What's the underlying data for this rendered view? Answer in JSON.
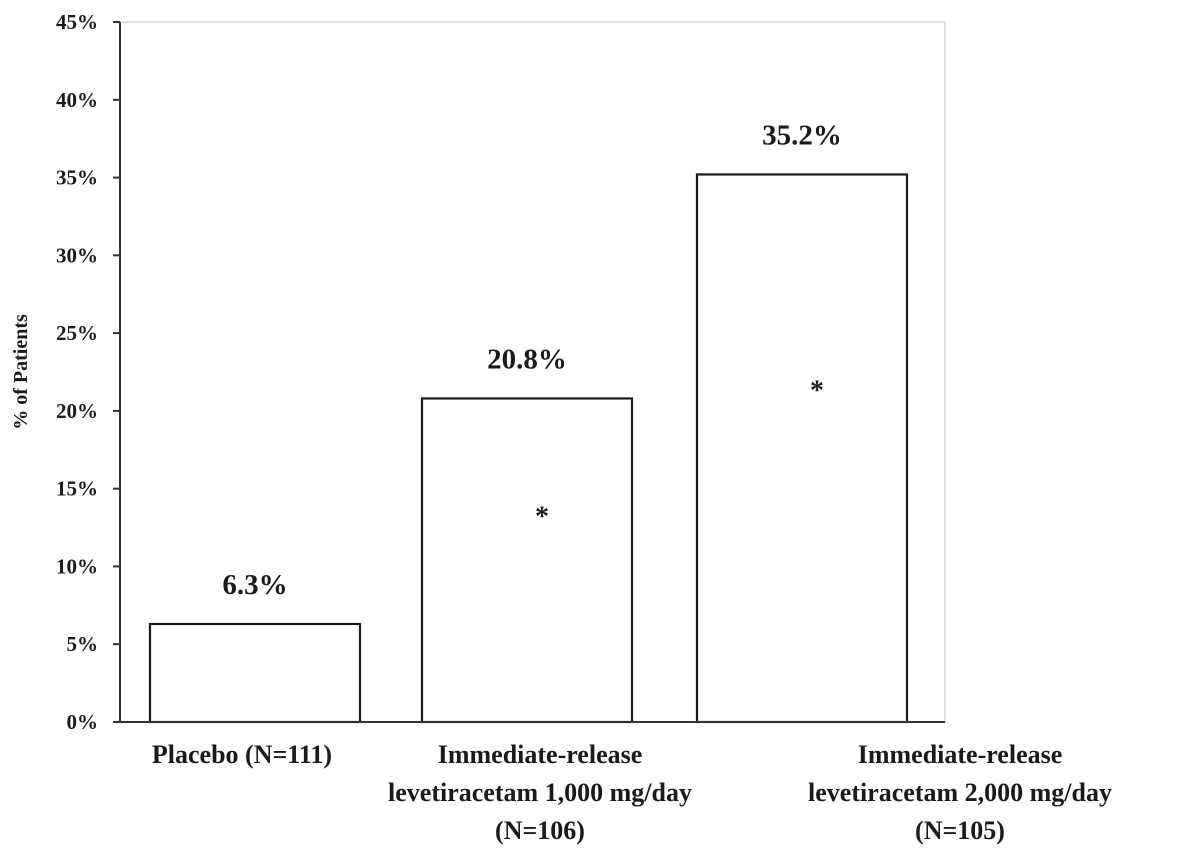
{
  "chart_data": {
    "type": "bar",
    "title": "",
    "xlabel": "",
    "ylabel": "% of Patients",
    "ylim": [
      0,
      45
    ],
    "yticks": [
      0,
      5,
      10,
      15,
      20,
      25,
      30,
      35,
      40,
      45
    ],
    "ytick_labels": [
      "0%",
      "5%",
      "10%",
      "15%",
      "20%",
      "25%",
      "30%",
      "35%",
      "40%",
      "45%"
    ],
    "grid": false,
    "legend": "none",
    "categories": [
      [
        "Placebo (N=111)"
      ],
      [
        "Immediate-release",
        "levetiracetam 1,000 mg/day",
        "(N=106)"
      ],
      [
        "Immediate-release",
        "levetiracetam 2,000 mg/day",
        "(N=105)"
      ]
    ],
    "values": [
      6.3,
      20.8,
      35.2
    ],
    "value_labels": [
      "6.3%",
      "20.8%",
      "35.2%"
    ],
    "annotations": [
      {
        "category_index": 1,
        "text": "*",
        "y": 13.4
      },
      {
        "category_index": 2,
        "text": "*",
        "y": 21.5
      }
    ],
    "colors": {
      "bar_fill": "#ffffff",
      "bar_stroke": "#1a1a1a",
      "axis": "#333333",
      "frame": "#cccccc"
    }
  }
}
